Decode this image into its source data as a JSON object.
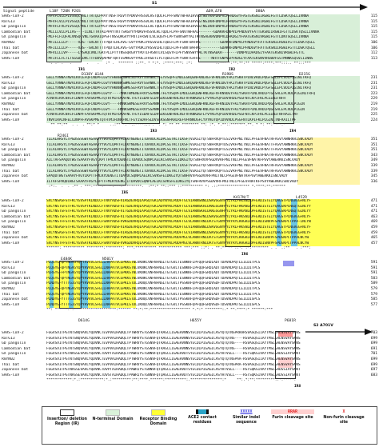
{
  "header": {
    "s1_label": "S1",
    "s2_label": "S2 A701V",
    "signal_label": "Signal peptide",
    "top_mutations": "L18F T20N P26S",
    "del_69_70": "Δ69,Δ70",
    "d80a": "D80A"
  },
  "blocks": [
    {
      "rows": [
        {
          "name": "SARS-CoV-2",
          "seq": "-MFVFLVLLPLVSSQCVNLTTRTQLPPAYTNSFTRGVYYPDKVFRSSVLHSTQDLFLPFFSNVTWFHAIHVSGTNGTKRFDNPVLPFNDGVYFASTEKSNIIRGWIFGTTLDSKTQSLLIVNNA",
          "end": "115"
        },
        {
          "name": "RaTG13",
          "seq": "-MFVFLVLLPLVSSQCVNLTTRTQLPPAYTNSSTRGVYYPDKVFRSSVLHLTQDLFLPFFSNVTWFHAIHVSGTNGIKRFDNPVLPFNDGVYFASTEKSNIIRGWIFGTTLDSKTQSLLIVNNA",
          "end": "115"
        },
        {
          "name": "GD pangolin",
          "seq": "-MFVFLFVLPLVSSQCVNLTTRTGIPPGYTNSSTRGVYYPDKVFRSSILHLTQDLFLPFFSNVTWFHAIHVSGTNGIKRFDNPVLPFNDGVYFASTEKSNIIRGWIFGTTLDSKTQSLLIVNNA",
          "end": "115"
        },
        {
          "name": "Cambodian bat",
          "seq": "-MLLLLVLLPLIAS----CLNLTTRTALPPAYTNTTSRGVYYPDKVFRSSVLHLTQDLFLPFFSNVTWFHAI-------GDAKRFDNPVLPFNDGVYFATTEKSNIIRGWIFGTTLDSKTQSLLIVNNA",
          "end": "115"
        },
        {
          "name": "GX pangolin",
          "seq": "-MLFFLFLQFALVNSQCVNLTGRAAIQPSFTNSSQRGVYYPDTIFRSNTLVLSQGYFLPFYSNVSWYYALTKTNSAEKRVDNPVLDFKDGIYFAATEKSNIVRGWIFGTTLDNTSQSLLIVNNA",
          "end": "115"
        },
        {
          "name": "RmYN02",
          "seq": "-MFILLLLLP-----VAS--SRLNTTTTPQDTLHLAVG-GVYYPDKIYRSSVLHLTQDLFLPFFSNVTWFHAI---------GDAKRFDNPVLPFNDGVYFATTEKSNIIRGWIFGTTLDSKTQSLL",
          "end": "106"
        },
        {
          "name": "Thai bat",
          "seq": "-MFILLLLLP-----VAS--SRLNTTTTPQDTLHLAVG-GVYYPDKIYRSSVLHLTQDLFLPFFSNVTWFHAI---------GDAKRFDNPVLPFNDGVYFATTEKSNIIRGWIFGTTLDSKTQSLL",
          "end": "106"
        },
        {
          "name": "Japanese bat",
          "seq": "-MFVLLLLVP-----LVSAQCVNLTGRTPLLPTYTNSSQRGVYYPDTIFRSNTLVLSQGYFLPFYSNVSWYYALTKTNSAEKR-------VDNPVLDFKDGIYFAATEKSNIVRGWIFGTTL",
          "end": "112"
        },
        {
          "name": "SARS-CoV",
          "seq": "-MFIFLLFLTLTSGSDLDRCTTFDDVQAPNYTQHTSSMRGVYYPDEIFRSDTLYLTQDLFLPFYSNVTGFHTI-----NHTFGNPVIPFKDGIYFAATEKSNVVRGWVFGSTMNNKSQSVIIINNS",
          "end": "113"
        }
      ],
      "cons": " *: :* .   .       .    .   :* .  ******* ::**. * *:*. :****:***: :*:           :.*** *:**:**:** *****:****:***:::.. **:::*** ",
      "labels": [
        {
          "text": "IR1"
        },
        {
          "text": "IR2"
        }
      ],
      "marks": [
        {
          "text": "D138Y Δ144"
        },
        {
          "text": "R190S"
        },
        {
          "text": "D215G"
        }
      ]
    },
    {
      "rows": [
        {
          "name": "SARS-CoV-2",
          "seq": "GSLLYVNNATNVVIKVCEFQFCNDPFLGVYYHKNNKSWMESEFRVYSSANNCTFEYVSQPFLMDLEGKQGNFKNLREFVFKNIDGYFKIYSKHTPINLVRDLPQGFSALEPLVDLPIGINITRFQ",
          "end": "231"
        },
        {
          "name": "RaTG13",
          "seq": "GSLLYVNNATNVVIKVCEFQFCNDPFLGVYYHKNNKSWMESEFRVYSSANNCTFEYVSQPFLMDLEGKQGNFKNLREFVFKNIDGYFKIYSKHTPINLVRDLPQGFSALEPLVDLPIGINITRFQ",
          "end": "231"
        },
        {
          "name": "GD pangolin",
          "seq": "GSLLYVNNATNVVIKVCEFQFCNDPFLGVYYHKNNKSWMESEFRVYSSANNCTFEYVSQPFLMDLEGKQGNFKNLREFVFKNVDGYFKIYSKHTPINLVRDLPTGFSALEPLVDLPIGINITRFQ",
          "end": "231"
        },
        {
          "name": "Cambodian bat",
          "seq": "GSLLYVNNATNVVIKVCEFQFCNDPFLGVYY----NNKTWMENEFRVYSSANNCTFEYVSQPFLMDLEGKQGNFKNLREFVFKNVDGYFKIYSKHTPINLVRDLPTGFSALEPLVDLPIGINITRFQ",
          "end": "223"
        },
        {
          "name": "GX pangolin",
          "seq": "ATNVVIRVCNFEFCDNPFFAVSKPMGTQTHTMIFDNAFNCTFEYISDAFSLDVSEKSGNFKHLREFVFKNKDGFLYVYKGYQPIDVVRDLPSGFNTLKPIFKLPLGINITNFR",
          "end": "229"
        },
        {
          "name": "RmYN02",
          "seq": "GSLLYVNNATNVVIKVCEFQFCNDPFLGVY----HNNKSWMESEFRVYSSANNCTFEYVSQPFLMDLEGKQGNFKNLREFVFKNIDGYFKIYSKHTPINLVRDLPQGFSALEPLVDLPIGIN",
          "end": "219"
        },
        {
          "name": "Thai bat",
          "seq": "GSLLYVNNATNVVIKVCEFQFCNDPFLGVY----HNNKSWMESEFRVYSSANNCTFEYVSQPFLMDLEGKQGNFKNLREFVFKNIDGYFKIYSKHTPINLVRDLPQGFSALEPLVDLPIGIN",
          "end": "219"
        },
        {
          "name": "Japanese bat",
          "seq": "ATNVVIRVCNFEFCDNPFFAVSKPMGTQTHTMIFDNAFNCTFEYISDAFSLDVSEKSGNFKHLREFVFKNKDGFLYVYKGYQPIDVVRDLPSGFNTLKPIFKLPLGINITNFRAILTAF",
          "end": "225"
        },
        {
          "name": "SARS-CoV",
          "seq": "TNVVIRACNFELCDNPFFAVSKPMGTQTHTMIFDNAFNCTFEYISDAFSLDVSEKSGNFKHLREFVFKNKDGFLYVYKGYQPIDVVRDLPSGFNTLKPIFKLPLGINITNFRAILTAF",
          "end": "224"
        }
      ],
      "cons": "  ** **:**  . .  . **:* *     ..:** *. *.:****:.: . *: *: ** ** ******** **: :*. *.**::*******.**. * *: **:****.*  ",
      "labels": [
        {
          "text": "IR3"
        },
        {
          "text": "IR4"
        }
      ],
      "marks": [
        {
          "text": "R246I"
        }
      ]
    },
    {
      "rows": [
        {
          "name": "SARS-CoV-2",
          "seq": "TLLALHRSYLTPGDSSSGWTAGAAAYYVGYLQPRTFLLKYNENGTITDAVDCALDPLSETKCTLKSFTVEKGIYQTSNFRVQPTESIVRFPNITNLCPFGEVFNATRFASVYAWNRKRISNCVADY",
          "end": "351"
        },
        {
          "name": "RaTG13",
          "seq": "TLLALHRSYLTPGDSSSGWTAGAAAYYVGYLQPRTFLLKYNENGTITDAVDCALDPLSETKCTLKSFTVEKGIYQTSNFRVQPTDSIVRFPNITNLCPFGEVFNATTFASVYAWNRKRISNCVADY",
          "end": "351"
        },
        {
          "name": "GD pangolin",
          "seq": "TLLALHRSYLTPGDSSSGWTAGAAAYYVGYLQPRTFLLKYNENGTITDAVDCALDPLSETKCTLKSFTVEKGIYQTSNFRVQPTESIVRFPNITNLCPFGEVFNATTFASVYAWNRKRISNCVADY",
          "end": "351"
        },
        {
          "name": "Cambodian bat",
          "seq": "TLLALHRSYLTPGDSSSGWTAGAAAYYVGYLQPRTFLLKYNENGTITDAVDCALDPLSETKCTLKSFTVEKGIYQTSNFRVQPTESIVRFPNITNLCPFGEVFNATRFASVYAWNRKRISNCVADY",
          "end": "343"
        },
        {
          "name": "GX pangolin",
          "seq": "AILTAFSPAQDTWGTSAAAYFVGYLKPTTFMLKYDENGTITDAVDCSQNPLAELKCSVKSFEIDKGIYQTSNFRVVPSGDVVRFPNITNLCPFGEVFNATKFPSVYAWERKKISNCVADY",
          "end": "349"
        },
        {
          "name": "RmYN02",
          "seq": "TLLALHRSYLTPGDSSSGWTAGAAAYYVGYLQPRTFLLKYNENGTITDAVDCALDPLSETKCTLKSFTVEKGIYQTSNFRVQPTESIVRFPNITNLCPFGEVFNATRFASVYAWNRKRISNCVADY",
          "end": "339"
        },
        {
          "name": "Thai bat",
          "seq": "TLLALHRSYLTPGDSSSGWTAGAAAYYVGYLQPRTFLLKYNENGTITDAVDCALDPLSETKCTLKSFTVEKGIYQTSNFRVQPTESIVRFPNITNLCPFGEVFNATRFASVYAWNRKRISNCVADY",
          "end": "339"
        },
        {
          "name": "Japanese bat",
          "seq": "SPAQDTWGTSAAAYFVGYLKPTTFMLKYDENGTITDAVDCSQNPLAELKCSVKSFEIDKGIYQTSNFRVVPSGDVVRFPNITNLCPFGEVFNATKFPSVYAWERKKISNCVADY",
          "end": "345"
        },
        {
          "name": "SARS-CoV",
          "seq": "ILTAFSPAQDIWGTSAAAYFVGYLKPTTFMLKYDENGTITDAVDCSQNPLAELKCSVKSFEIDKGIYQTSNFRVVPSGDVVRFPNITNLCPFGEVFNATKFPSVYAWERKKISNCVADY",
          "end": "336"
        }
      ],
      "cons": " :*:.  .  . .** . ***:****:* **:***:*********.  :**:* **::*** ::********** *: .::*************** *.****:**:******",
      "labels": [
        {
          "text": "IR5"
        }
      ],
      "marks": [
        {
          "text": "K417N/T"
        },
        {
          "text": "L452R"
        }
      ]
    },
    {
      "rows": [
        {
          "name": "SARS-CoV-2",
          "seq": "SVLYNSASFSTFKCYGVSPTKLNDLCFTNVYADSFVIRGDEVRQIAPGQTGKIADYNYKLPDDFTGCVIAWNSNNLDSKVGGNYNYLYRLFRKSNLKPFERDISTEIYQAGSTPCNGVEGFNCYF",
          "end": "471"
        },
        {
          "name": "RaTG13",
          "seq": "SVLYNSTSFSTFKCYGVSPTKLNDLCFTNVYADSFVITGDEVRQIAPGQTGKIADYNYKLPDDFTGCVIAWNSKHIDAKEGGNFNYLYRLFRKANLKPFERDISTEIYQAGSKPCNGQTGLNCYY",
          "end": "471"
        },
        {
          "name": "GD pangolin",
          "seq": "SVLYNSTSFSTFKCYGVSPTKLNDLCFTNVYADSFVITGDEVRQIAPGQTGKIADYNYKLPDDFTGCVIAWNSKHIDAKEGGNFNYLYRLFRKANLKPFERDISTEIYQAGSKPCNGQTGLNCYY",
          "end": "471"
        },
        {
          "name": "Cambodian bat",
          "seq": "SVLYNSTSFSTFKCYGVSPTKLNDLCFTNVYADSFVITGDEVRQIAPGQTGKIADYNYKLPDDFTGCVIAWNSVNLDSKVGGNYNYLYRLFRKSNLKPFERDISTEIYQAGSTPCNGVEGFNCYF",
          "end": "463"
        },
        {
          "name": "GX pangolin",
          "seq": "SVLYNSTFFSTFKCYGVSATKLNDLCFSNVYADSFVVKGDDVRQIAPGQTGVIADYNYKLPDDFTGCVLAWNTRNIDATSTGNYNYKYRYLRHGKLRPFERDISNVPFSPDGKPCTPPA-LNCYW",
          "end": "469"
        },
        {
          "name": "RmYN02",
          "seq": "SVLYNSASFSTFKCYGVSPTKLNDLCFTNVYADSFVIRGDEVRQIAPGQTGKIADYNYKLPDDFTGCVIAWNSNNLDSKVGGNYNYLYRLFRKSNLKPFERDISTEIYQAGSTPCNGVEGFNCYF",
          "end": "459"
        },
        {
          "name": "Thai bat",
          "seq": "SVLYNSASFSTFKCYGVSPTKLNDLCFTNVYADSFVIRGDEVRQIAPGQTGKIADYNYKLPDDFTGCVIAWNSNNLDSKVGGNYNYLYRLFRKSNLKPFERDISTEIYQAGSTPCNGVEGFNCYF",
          "end": "459"
        },
        {
          "name": "Japanese bat",
          "seq": "SVLYNSTFFSTFKCYGVSATKLNDLCFSNVYADSFVVKGDDVRQIAPGQTGVIADYNYKLPDDFMGCVLAWNTRNIDATSTGNYNYKYRYLRHGKLRPFERDISNVPFSPDGKPCTPPALNCYW",
          "end": "465"
        },
        {
          "name": "SARS-CoV",
          "seq": "SVLYNSTFFSTFKCYGVSATKLNDLCFSNVYADSFVVKGDDVRQIAPGQTGVIADYNYKLPDDFMGCVLAWNTRNIDATSTGNYNYKYRYLRHGKLRPFERDISNVPFSPDGKPCTPPALNCYW",
          "end": "457"
        }
      ],
      "cons": "******: ********** ********:********: ***:********** *********** ***:*** ::*: . **:** ** ::*. :*:******** . .  .:**   . :***:",
      "labels": [
        {
          "text": "IR6"
        }
      ],
      "marks": [
        {
          "text": "E484K"
        },
        {
          "text": "N501Y"
        }
      ]
    },
    {
      "rows": [
        {
          "name": "SARS-CoV-2",
          "seq": "PLQSYGFQPTNGVGYQPYRVVVLSFELLHAPATVCGPKKSTNLVKNKCVNFNFNGLTGTGVLTESNKKFLPFQQFGRDIADTTDAVRDPQTLEILDITPCS",
          "end": "591"
        },
        {
          "name": "RaTG13",
          "seq": "PLQSYGFQPTNGVGYQPYRVVVLSFELLNAPATVCGPKKSTNLVKNKCVNFNFNGLTGTGVLTESNKKFLPFQQFGRDIADTTDAVRDPQTLEILDITPCS",
          "end": "591"
        },
        {
          "name": "GD pangolin",
          "seq": "PLRSYGFFPTNGVGYQPYRVVVLSFELLNAPATVCGPKKSTNLVKNKCVNFNFNGLTGTGVLTESNKKFLPFQQFGRDIADTTDAVRDPQTLEILDITPCS",
          "end": "591"
        },
        {
          "name": "Cambodian bat",
          "seq": "PLQSYGFQPTNGVGYQPYRVVVLSFELLHAPATVCGPKKSTNLVKNKCVNFNFNGLTGTGVLTESNKKFLPFQQFGRDIADTTDAVRDPQTLEILDITPCS",
          "end": "583"
        },
        {
          "name": "GX pangolin",
          "seq": "PLNDYGFYTTTGIGYQPYRVVVLSFELLNAPATVCGPKLSTDLIKNQCVNFNFNGLTGTGVLTPSSKRFQPFQQFGRDVSDFTDSVRDPKTSEILDISPCS",
          "end": "589"
        },
        {
          "name": "RmYN02",
          "seq": "PLQSYGFQPTNGVGYQPYRVVVLSFELLHAPATVCGPKKSTNLVKNKCVNFNFNGLTGTGVLTESNKKFLPFQQFGRDIADTTDAVRDPQTLEILDITPCS",
          "end": "579"
        },
        {
          "name": "Thai bat",
          "seq": "PLQSYGFQPTNGVGYQPYRVVVLSFELLHAPATVCGPKKSTNLVKNKCVNFNFNGLTGTGVLTESNKKFLPFQQFGRDIADTTDAVRDPQTLEILDITPCS",
          "end": "579"
        },
        {
          "name": "Japanese bat",
          "seq": "PLNDYGFYTTTGIGYQPYRVVVLSFELLNAPATVCGPKLSTDLIKNQCVNFNFNGLTGTGVLTPSSKRFQPFQQFGRDVSDFTDSVRDPKTSEILDISPCS",
          "end": "585"
        },
        {
          "name": "SARS-CoV",
          "seq": "PLNDYGFYTTTGIGYQPYRVVVLSFELLNAPATVCGPKLSTDLIKNQCVNFNFNGLTGTGVLTPSSKRFQPFQQFGRDVSDFTDSVRDPKTSEILDISPCS",
          "end": "577"
        }
      ],
      "cons": "**: ***  *.*:********************:****** **:*:**:******************* *.*:* ********:.* **.****:* ******:***",
      "labels": [],
      "marks": [
        {
          "text": "D614G"
        },
        {
          "text": "H655Y"
        },
        {
          "text": "P681R"
        }
      ]
    },
    {
      "rows": [
        {
          "name": "SARS-CoV-2",
          "seq": "FGGVSVITPGTNTSNQVAVLYQDVNCTEVPVAIHADQLTPTWRVYSTGSNVFQTRAGCLIGAEHVNNSYECDIPIGAGICASYQTQTNSPRRARSVASQSIIAYTMSLGAENSVAYSNNS",
          "end": "703"
        },
        {
          "name": "RaTG13",
          "seq": "FGGVSVITPGTNTSNQVAVLYQDVNCTEVPVAIHADQLTPTWRVYSTGSNVFQTRAGCLIGAEHVNNSYECDIPIGAGICASYQTQTNS----RSVASQSIIAYTMSLGAENSVAYSNNS",
          "end": "699"
        },
        {
          "name": "GD pangolin",
          "seq": "FGGVSVITPGTNTSNQVAVLYQDVNCTEVPVAIHADQLTPTWRVYSTGSNVFQTRAGCLIGAEHVNNSYECDIPIGAGICASYQTQTNS----RSVASQSIIAYTMSLGAENSVAYSNNS",
          "end": "699"
        },
        {
          "name": "Cambodian bat",
          "seq": "FGGVSVITPGTNTSNQVAVLYQDVNCTEVPVAIHADQLTPTWRVYSTGSNVFQTRAGCLIGAEHVNNSYECDIPIGAGICASYQTQTNS----RSVASQSIIAYTMSLGAENSVAYSNNS",
          "end": "691"
        },
        {
          "name": "GX pangolin",
          "seq": "FGGVSVITPGTNASSEVAVLYQDVNCTDVPTAIHADQLTPAWRIYSTGNNVFQTQAGCLIGAEHVDTSYECDIPIGAGICASYHTVSLL----RSTSQKSIVAYTMSLGADSSIAYSNNT",
          "end": "701"
        },
        {
          "name": "RmYN02",
          "seq": "FGGVSVITPGTNTSNQVAVLYQDVNCTEVPVAIHADQLTPTWRVYSTGSNVFQTRAGCLIGAEHVNNSYECDIPIGAGICASYQTQTNSPAA-RSVASQSIIAYTMSLGAENSVAYSNNS",
          "end": "699"
        },
        {
          "name": "Thai bat",
          "seq": "FGGVSVITPGTNTSNQVAVLYQDVNCTEVPVAIHADQLTPTWRVYSTGSNVFQTRAGCLIGAEHVNNSYECDIPIGAGICASYQTQTNSPRA-RSVASQSIIAYTMSLGAENSVAYSNNS",
          "end": "699"
        },
        {
          "name": "Japanese bat",
          "seq": "FGGVSVITPGTNASSEVAVLYQDVNCTDVPTAIHADQLTPAWRIYSTGNNVFQTQAGCLIGAEHVDTSYECDIPIGAGICASYHTVSLL----RSTSQKSIVAYTMSLGADSSIAYSNNT",
          "end": "697"
        },
        {
          "name": "SARS-CoV",
          "seq": "FGGVSVITPGTNASSEVAVLYQDVNCTDVSTAIHADQLTPAWRIYSTGNNVFQTQAGCLIGAEHVDTSYECDIPIGAGICASYHTVSLL----RSTSQKSIVAYTMSLGADSSIAYSNNT",
          "end": "683"
        }
      ],
      "cons": "************:*.:***********:*.:*********:**:****.******:**********:.***************:*     **:.*:**:*********:.*:*****:",
      "labels": [
        {
          "text": "IR8"
        }
      ],
      "marks": []
    }
  ],
  "legend": [
    {
      "label": "Insertion/ deletion Region (IR)",
      "color": "#ffffff",
      "style": "box"
    },
    {
      "label": "N-terminal Domain",
      "color": "#d9f2d9",
      "style": "fill"
    },
    {
      "label": "Receptor Binding Domain",
      "color": "#ffff33",
      "style": "fill"
    },
    {
      "label": "ACE2 contact residues",
      "color": "#29a3c7",
      "style": "bar"
    },
    {
      "label": "Similar indel sequence",
      "color": "#3a3ae0",
      "style": "text"
    },
    {
      "label": "Furin cleavage site",
      "color": "#e02020",
      "style": "text"
    },
    {
      "label": "Non-furin cleavage site",
      "color": "#e02020",
      "style": "text"
    }
  ],
  "legend_glyphs": [
    "",
    "",
    "",
    "",
    "XXXXX",
    "RRAR",
    "X"
  ]
}
